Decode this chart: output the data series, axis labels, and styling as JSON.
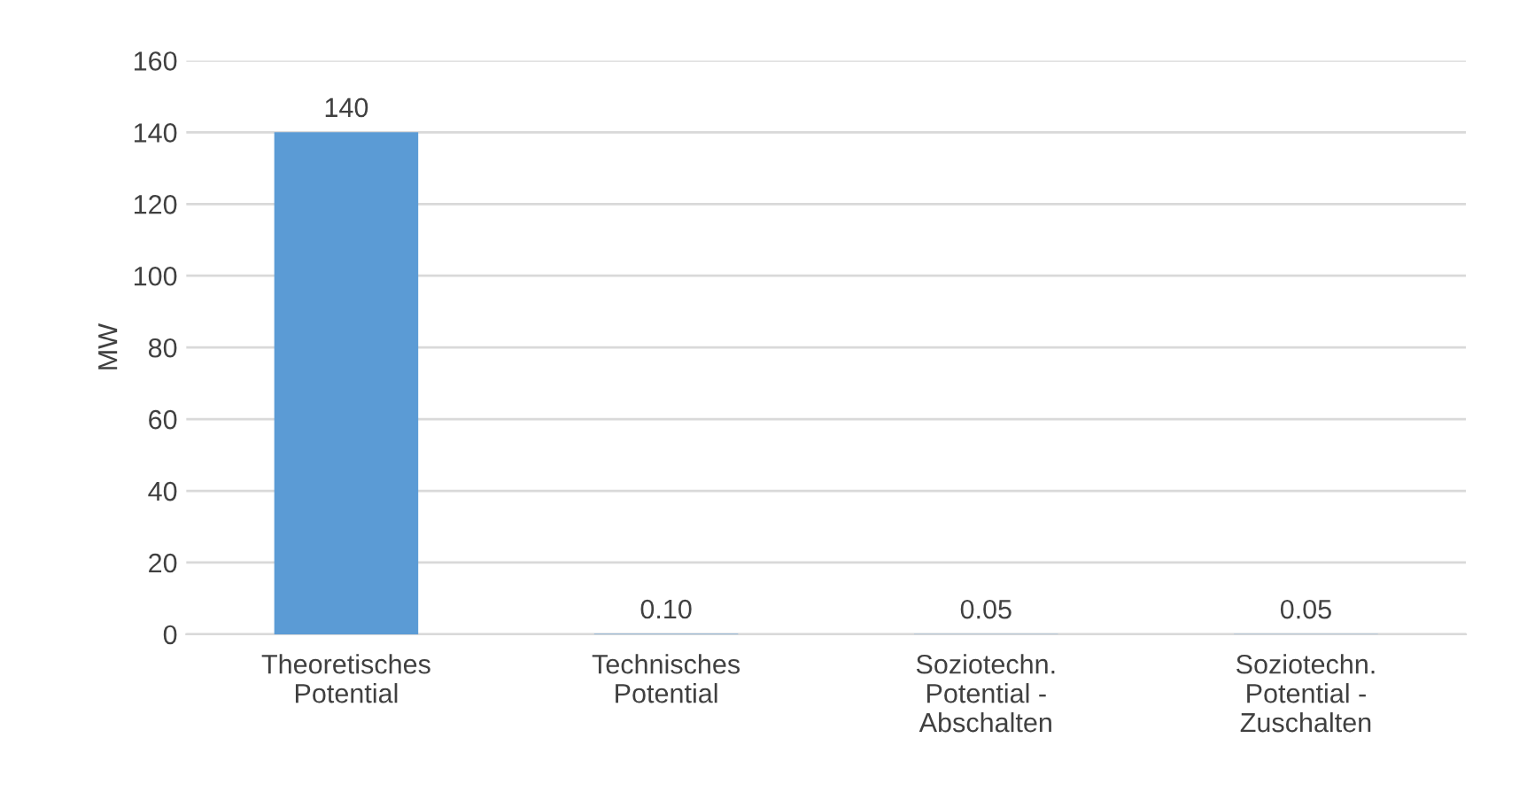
{
  "chart_data": {
    "type": "bar",
    "ylabel": "MW",
    "categories": [
      "Theoretisches\nPotential",
      "Technisches\nPotential",
      "Soziotechn.\nPotential -\nAbschalten",
      "Soziotechn.\nPotential -\nZuschalten"
    ],
    "values": [
      140,
      0.1,
      0.05,
      0.05
    ],
    "value_labels": [
      "140",
      "0.10",
      "0.05",
      "0.05"
    ],
    "color": "#5b9bd5",
    "ylim": [
      0,
      160
    ],
    "yticks": [
      0,
      20,
      40,
      60,
      80,
      100,
      120,
      140,
      160
    ],
    "grid": "y"
  }
}
